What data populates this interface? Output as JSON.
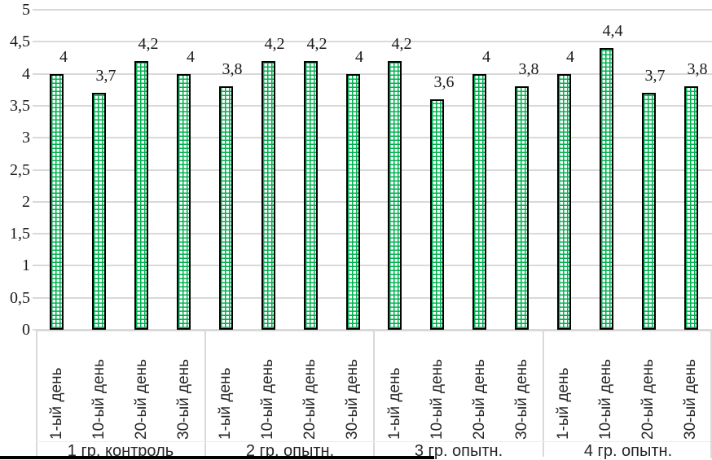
{
  "chart_data": {
    "type": "bar",
    "title": "",
    "legend": "none",
    "grid": true,
    "decimal_separator": ",",
    "y_axis": {
      "min": 0,
      "max": 5,
      "step": 0.5,
      "ticks": [
        "5",
        "4,5",
        "4",
        "3,5",
        "3",
        "2,5",
        "2",
        "1,5",
        "1",
        "0,5",
        "0"
      ]
    },
    "day_categories": [
      "1-ый день",
      "10-ый день",
      "20-ый день",
      "30-ый день"
    ],
    "groups": [
      {
        "label": "1 гр. контроль",
        "values": [
          4,
          3.7,
          4.2,
          4
        ],
        "value_labels": [
          "4",
          "3,7",
          "4,2",
          "4"
        ]
      },
      {
        "label": "2 гр. опытн.",
        "values": [
          3.8,
          4.2,
          4.2,
          4
        ],
        "value_labels": [
          "3,8",
          "4,2",
          "4,2",
          "4"
        ]
      },
      {
        "label": "3 гр. опытн.",
        "values": [
          4.2,
          3.6,
          4,
          3.8
        ],
        "value_labels": [
          "4,2",
          "3,6",
          "4",
          "3,8"
        ]
      },
      {
        "label": "4 гр. опытн.",
        "values": [
          4,
          4.4,
          3.7,
          3.8
        ],
        "value_labels": [
          "4",
          "4,4",
          "3,7",
          "3,8"
        ]
      }
    ],
    "bar_style": {
      "pattern": "small-grid-crosshatch",
      "pattern_color": "#00B050",
      "border_color": "#000000",
      "background": "#ffffff"
    },
    "colors": {
      "gridline": "#d9d9d9",
      "axis_box": "#d9d9d9",
      "serif_text": "#1a1a1a",
      "sans_text": "#262626",
      "bottom_rule": "#000000"
    }
  }
}
